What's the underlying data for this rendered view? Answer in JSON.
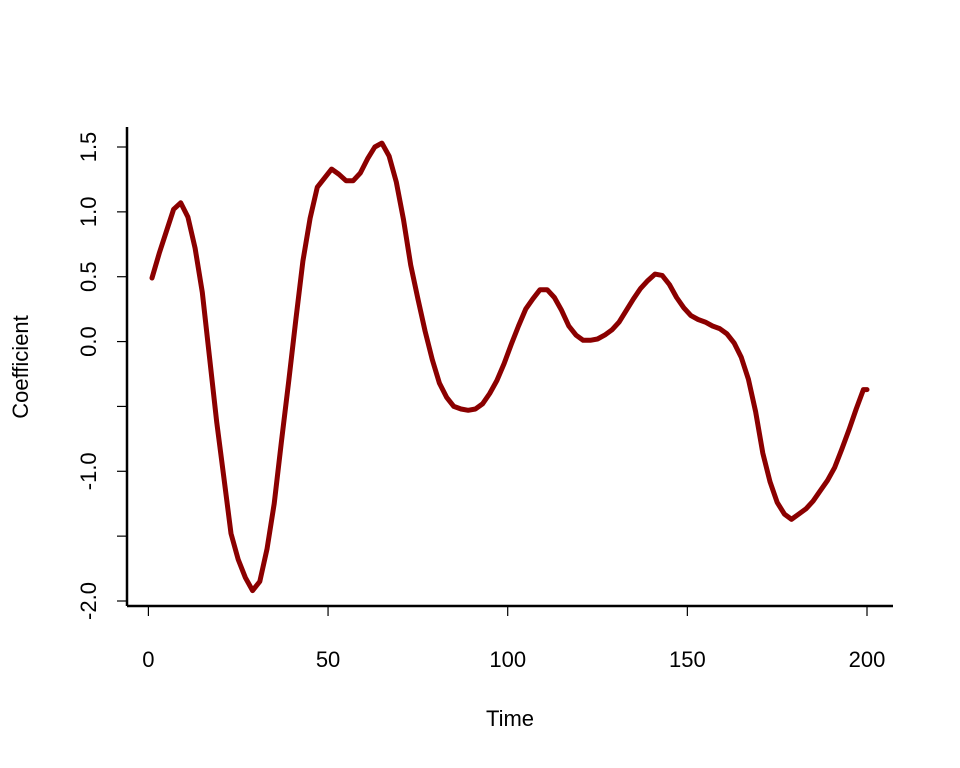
{
  "chart_data": {
    "type": "line",
    "title": "",
    "xlabel": "Time",
    "ylabel": "Coefficient",
    "xlim": [
      1,
      200
    ],
    "ylim": [
      -2.0,
      1.6
    ],
    "x_ticks": [
      0,
      50,
      100,
      150,
      200
    ],
    "x_tick_labels": [
      "0",
      "50",
      "100",
      "150",
      "200"
    ],
    "y_ticks": [
      -2.0,
      -1.5,
      -1.0,
      -0.5,
      0.0,
      0.5,
      1.0,
      1.5
    ],
    "y_tick_labels": [
      "-2.0",
      "",
      "-1.0",
      "",
      "0.0",
      "0.5",
      "1.0",
      "1.5"
    ],
    "grid": false,
    "line_color": "#8b0000",
    "series": [
      {
        "x": [
          1,
          3,
          5,
          7,
          9,
          11,
          13,
          15,
          17,
          19,
          21,
          23,
          25,
          27,
          29,
          31,
          33,
          35,
          37,
          39,
          41,
          43,
          45,
          47,
          49,
          51,
          53,
          55,
          57,
          59,
          61,
          63,
          65,
          67,
          69,
          71,
          73,
          75,
          77,
          79,
          81,
          83,
          85,
          87,
          89,
          91,
          93,
          95,
          97,
          99,
          101,
          103,
          105,
          107,
          109,
          111,
          113,
          115,
          117,
          119,
          121,
          123,
          125,
          127,
          129,
          131,
          133,
          135,
          137,
          139,
          141,
          143,
          145,
          147,
          149,
          151,
          153,
          155,
          157,
          159,
          161,
          163,
          165,
          167,
          169,
          171,
          173,
          175,
          177,
          179,
          181,
          183,
          185,
          187,
          189,
          191,
          193,
          195,
          197,
          199,
          200
        ],
        "values": [
          0.49,
          0.68,
          0.85,
          1.02,
          1.07,
          0.96,
          0.72,
          0.38,
          -0.12,
          -0.62,
          -1.05,
          -1.48,
          -1.68,
          -1.82,
          -1.92,
          -1.85,
          -1.6,
          -1.25,
          -0.78,
          -0.32,
          0.16,
          0.62,
          0.95,
          1.19,
          1.26,
          1.33,
          1.29,
          1.24,
          1.24,
          1.3,
          1.41,
          1.5,
          1.53,
          1.43,
          1.23,
          0.94,
          0.59,
          0.33,
          0.08,
          -0.14,
          -0.32,
          -0.43,
          -0.5,
          -0.52,
          -0.53,
          -0.52,
          -0.48,
          -0.4,
          -0.3,
          -0.17,
          -0.02,
          0.12,
          0.25,
          0.33,
          0.4,
          0.4,
          0.34,
          0.24,
          0.12,
          0.05,
          0.01,
          0.01,
          0.02,
          0.05,
          0.09,
          0.15,
          0.24,
          0.33,
          0.41,
          0.47,
          0.52,
          0.51,
          0.44,
          0.34,
          0.26,
          0.2,
          0.17,
          0.15,
          0.12,
          0.1,
          0.06,
          -0.01,
          -0.12,
          -0.29,
          -0.54,
          -0.86,
          -1.08,
          -1.24,
          -1.33,
          -1.37,
          -1.33,
          -1.29,
          -1.23,
          -1.15,
          -1.07,
          -0.97,
          -0.83,
          -0.68,
          -0.52,
          -0.37,
          -0.37
        ]
      }
    ]
  }
}
